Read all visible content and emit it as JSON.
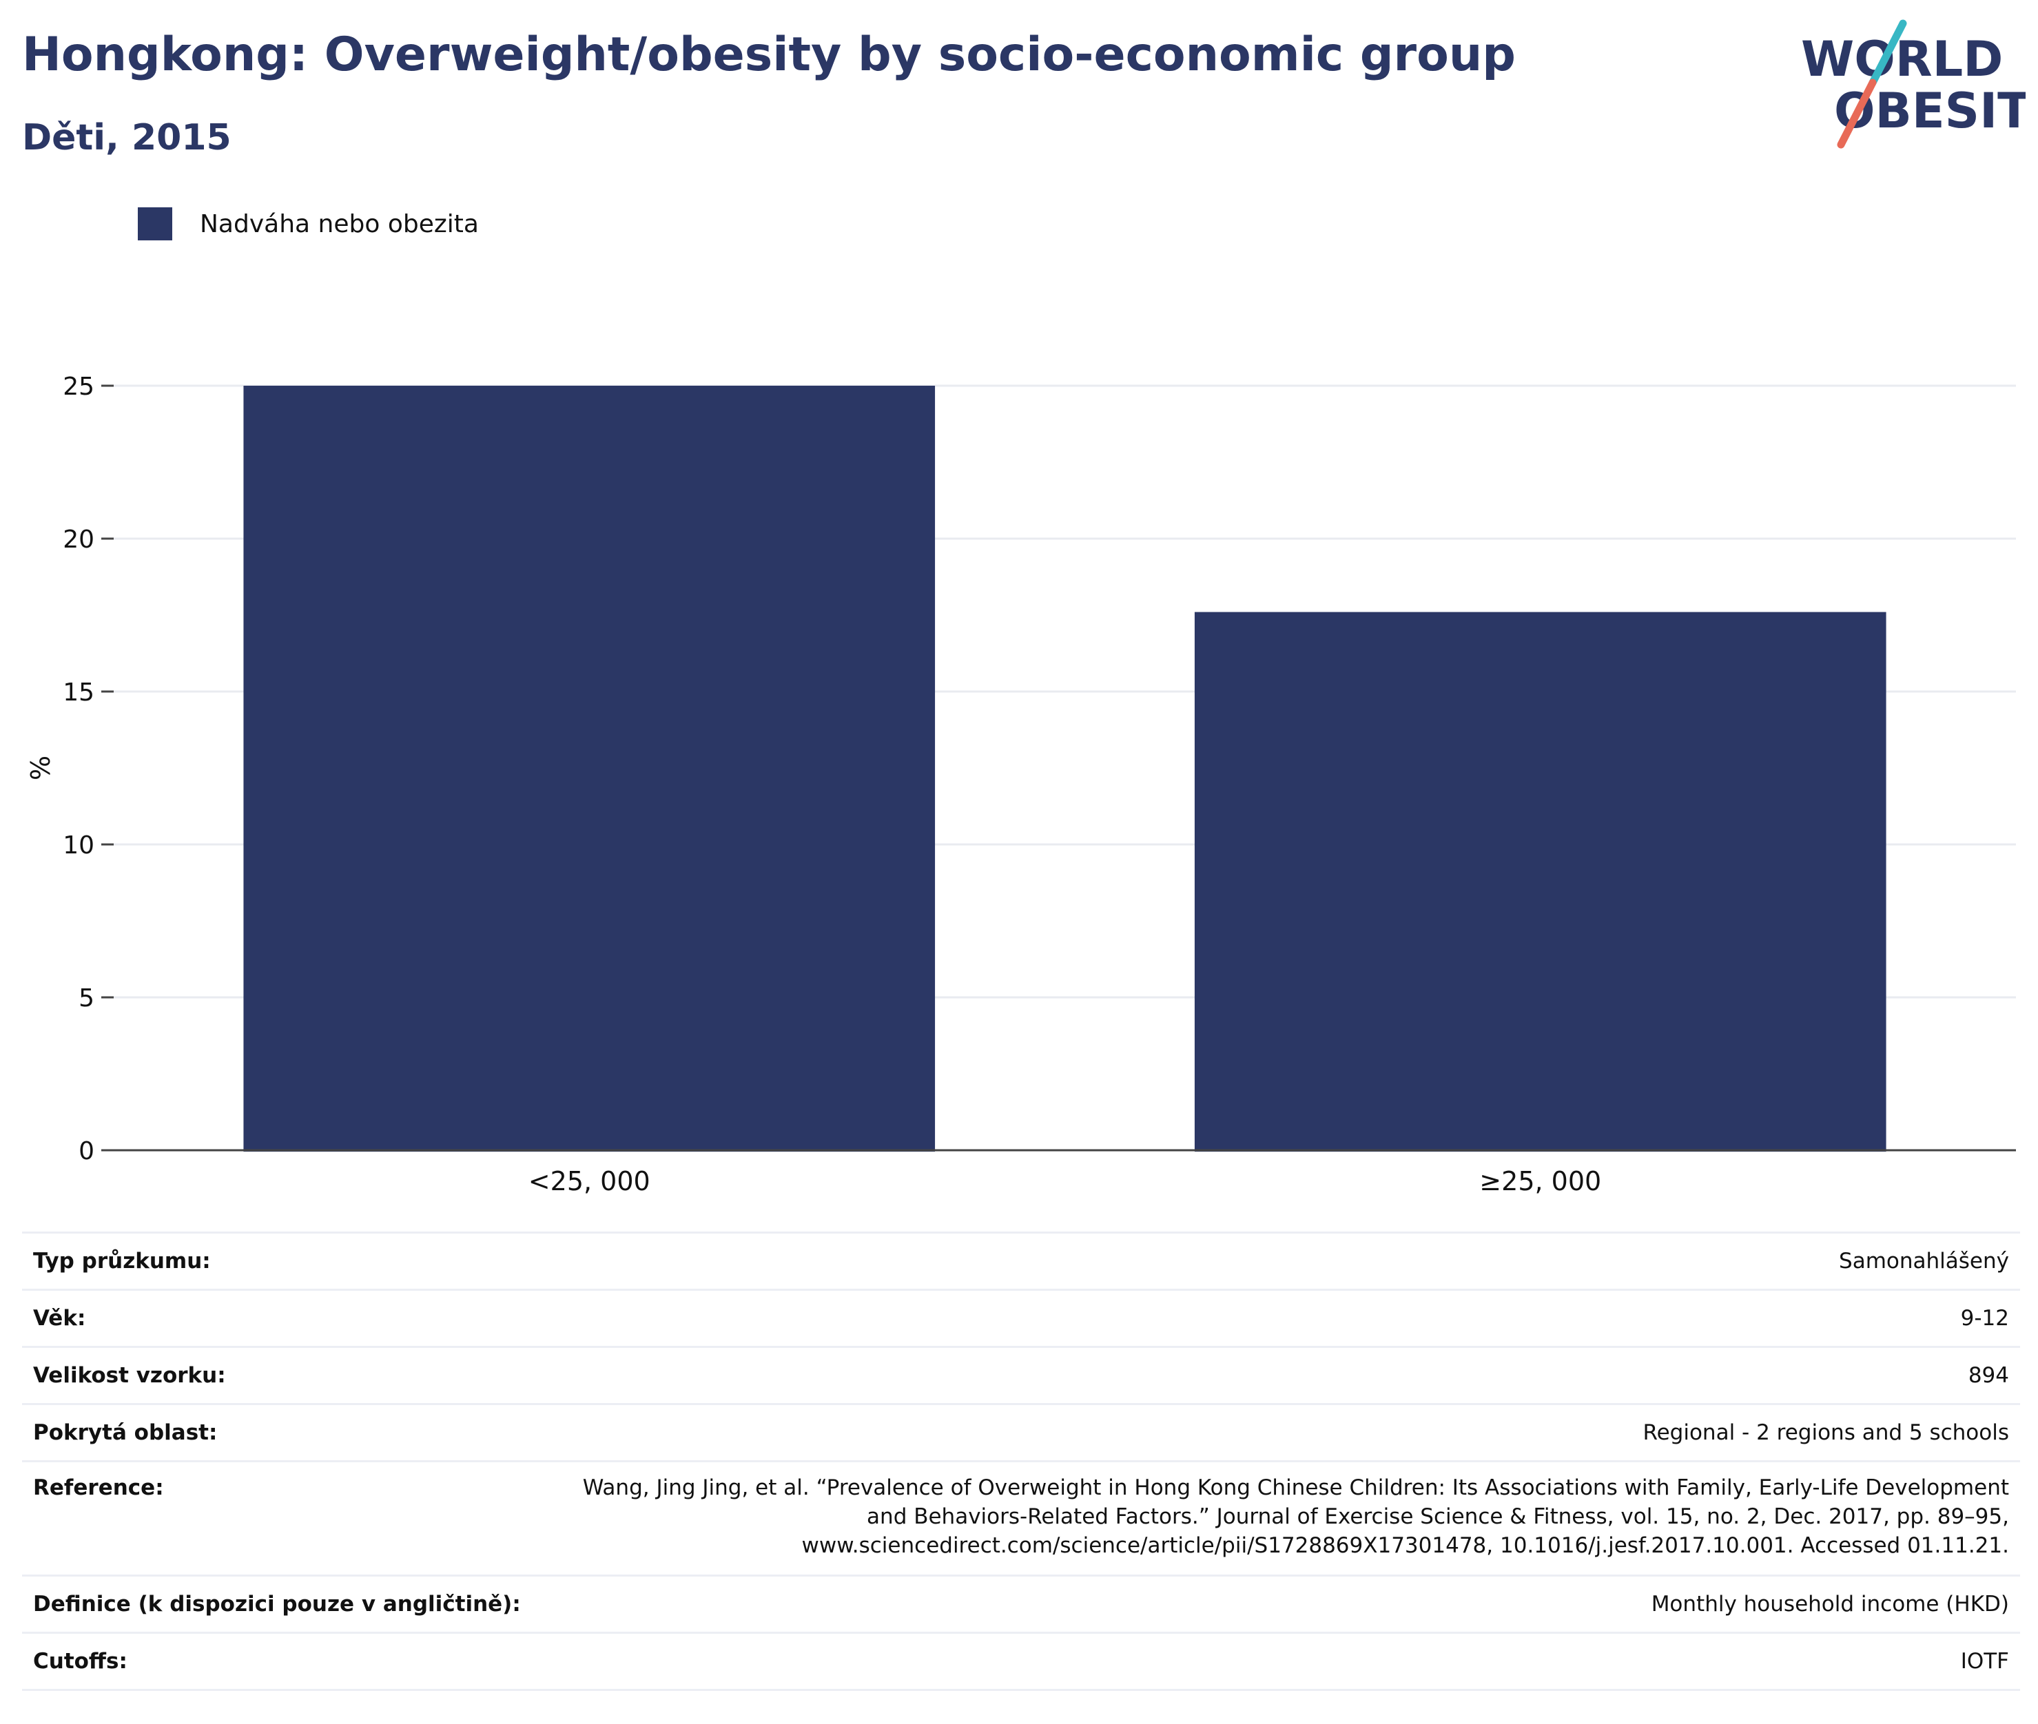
{
  "header": {
    "title": "Hongkong: Overweight/obesity by socio-economic group",
    "subtitle": "Děti, 2015"
  },
  "logo": {
    "line1": "WORLD",
    "line2": "OBESITY",
    "colors": {
      "text": "#2b3765",
      "slash_top": "#38b7c4",
      "slash_bottom": "#e86a57"
    }
  },
  "legend": {
    "label": "Nadváha nebo obezita",
    "color": "#2b3765"
  },
  "chart_data": {
    "type": "bar",
    "categories": [
      "<25, 000",
      "≥25, 000"
    ],
    "series": [
      {
        "name": "Nadváha nebo obezita",
        "values": [
          25.0,
          17.6
        ],
        "color": "#2b3765"
      }
    ],
    "ylabel": "%",
    "xlabel": "",
    "ylim": [
      0,
      25
    ],
    "yticks": [
      0,
      5,
      10,
      15,
      20,
      25
    ],
    "grid": true,
    "legend_position": "top-left"
  },
  "metadata": [
    {
      "key": "Typ průzkumu:",
      "value": "Samonahlášený"
    },
    {
      "key": "Věk:",
      "value": "9-12"
    },
    {
      "key": "Velikost vzorku:",
      "value": "894"
    },
    {
      "key": "Pokrytá oblast:",
      "value": "Regional - 2 regions and 5 schools"
    },
    {
      "key": "Reference:",
      "value_lines": [
        "Wang, Jing Jing, et al. “Prevalence of Overweight in Hong Kong Chinese Children: Its Associations with Family, Early-Life Development",
        "and Behaviors-Related Factors.” Journal of Exercise Science & Fitness, vol. 15, no. 2, Dec. 2017, pp. 89–95,",
        "www.sciencedirect.com/science/article/pii/S1728869X17301478, 10.1016/j.jesf.2017.10.001. Accessed 01.11.21."
      ]
    },
    {
      "key": "Definice (k dispozici pouze v angličtině):",
      "value": "Monthly household income (HKD)"
    },
    {
      "key": "Cutoffs:",
      "value": "IOTF"
    }
  ]
}
